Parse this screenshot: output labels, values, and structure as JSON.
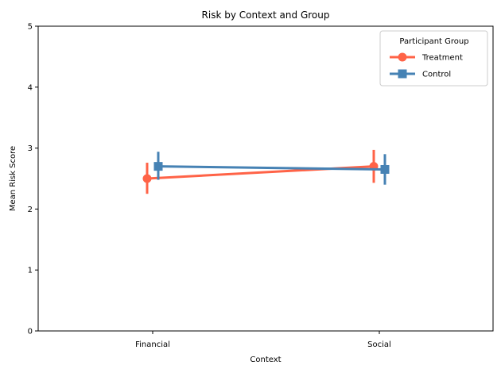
{
  "chart_data": {
    "type": "line",
    "title": "Risk by Context and Group",
    "xlabel": "Context",
    "ylabel": "Mean Risk Score",
    "categories": [
      "Financial",
      "Social"
    ],
    "ylim": [
      0,
      5
    ],
    "yticks": [
      "0",
      "1",
      "2",
      "3",
      "4",
      "5"
    ],
    "grid": false,
    "legend": {
      "title": "Participant Group",
      "placement": "top-right"
    },
    "series": [
      {
        "name": "Treatment",
        "marker": "circle",
        "color": "#ff6347",
        "values": [
          2.5,
          2.7
        ],
        "ci_low": [
          2.25,
          2.43
        ],
        "ci_high": [
          2.76,
          2.97
        ]
      },
      {
        "name": "Control",
        "marker": "square",
        "color": "#4682b4",
        "values": [
          2.7,
          2.65
        ],
        "ci_low": [
          2.48,
          2.4
        ],
        "ci_high": [
          2.94,
          2.9
        ]
      }
    ]
  }
}
